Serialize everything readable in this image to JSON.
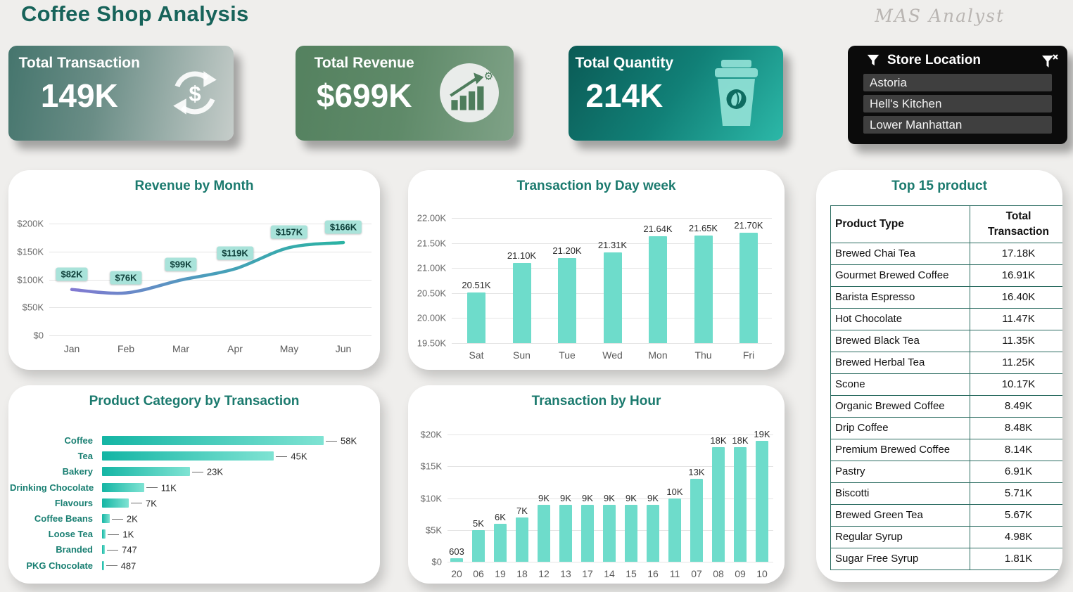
{
  "header": {
    "title": "Coffee Shop Analysis",
    "brand": "MAS Analyst"
  },
  "kpis": [
    {
      "label": "Total Transaction",
      "value": "149K",
      "icon": "transaction-cycle-icon"
    },
    {
      "label": "Total Revenue",
      "value": "$699K",
      "icon": "revenue-growth-icon"
    },
    {
      "label": "Total Quantity",
      "value": "214K",
      "icon": "coffee-cup-icon"
    }
  ],
  "store_filter": {
    "title": "Store Location",
    "icon": "filter-funnel-icon",
    "clear_icon": "clear-filter-icon",
    "options": [
      "Astoria",
      "Hell's Kitchen",
      "Lower Manhattan"
    ]
  },
  "colors": {
    "accent_teal": "#6edccb",
    "title_teal": "#1b7a6e",
    "chip_bg": "#a9e3da",
    "line_gradient": [
      "#8279d2",
      "#4a9dbb",
      "#2bb3a3"
    ],
    "hbar_gradient": [
      "#14b5a4",
      "#7fe3d3"
    ]
  },
  "chart_data": [
    {
      "id": "revenue_by_month",
      "type": "line",
      "title": "Revenue by Month",
      "categories": [
        "Jan",
        "Feb",
        "Mar",
        "Apr",
        "May",
        "Jun"
      ],
      "values": [
        82,
        76,
        99,
        119,
        157,
        166
      ],
      "labels": [
        "$82K",
        "$76K",
        "$99K",
        "$119K",
        "$157K",
        "$166K"
      ],
      "unit": "K USD",
      "ytick_labels": [
        "$0",
        "$50K",
        "$100K",
        "$150K",
        "$200K"
      ],
      "ylim": [
        0,
        200
      ],
      "grid": true,
      "legend": false
    },
    {
      "id": "transaction_by_day_week",
      "type": "bar",
      "title": "Transaction by Day week",
      "categories": [
        "Sat",
        "Sun",
        "Tue",
        "Wed",
        "Mon",
        "Thu",
        "Fri"
      ],
      "values": [
        20.51,
        21.1,
        21.2,
        21.31,
        21.64,
        21.65,
        21.7
      ],
      "labels": [
        "20.51K",
        "21.10K",
        "21.20K",
        "21.31K",
        "21.64K",
        "21.65K",
        "21.70K"
      ],
      "unit": "K transactions",
      "ytick_labels": [
        "19.50K",
        "20.00K",
        "20.50K",
        "21.00K",
        "21.50K",
        "22.00K"
      ],
      "ylim": [
        19.5,
        22.0
      ],
      "grid": true,
      "legend": false
    },
    {
      "id": "product_category_by_transaction",
      "type": "bar-horizontal",
      "title": "Product Category by  Transaction",
      "categories": [
        "Coffee",
        "Tea",
        "Bakery",
        "Drinking Chocolate",
        "Flavours",
        "Coffee Beans",
        "Loose Tea",
        "Branded",
        "PKG Chocolate"
      ],
      "values": [
        58000,
        45000,
        23000,
        11000,
        7000,
        2000,
        1000,
        747,
        487
      ],
      "labels": [
        "58K",
        "45K",
        "23K",
        "11K",
        "7K",
        "2K",
        "1K",
        "747",
        "487"
      ],
      "xlim": [
        0,
        58000
      ],
      "grid": false,
      "legend": false
    },
    {
      "id": "transaction_by_hour",
      "type": "bar",
      "title": "Transaction by Hour",
      "categories": [
        "20",
        "06",
        "19",
        "18",
        "12",
        "13",
        "17",
        "14",
        "15",
        "16",
        "11",
        "07",
        "08",
        "09",
        "10"
      ],
      "values": [
        603,
        5000,
        6000,
        7000,
        9000,
        9000,
        9000,
        9000,
        9000,
        9000,
        10000,
        13000,
        18000,
        18000,
        19000
      ],
      "labels": [
        "603",
        "5K",
        "6K",
        "7K",
        "9K",
        "9K",
        "9K",
        "9K",
        "9K",
        "9K",
        "10K",
        "13K",
        "18K",
        "18K",
        "19K"
      ],
      "ytick_labels": [
        "$0",
        "$5K",
        "$10K",
        "$15K",
        "$20K"
      ],
      "ylim": [
        0,
        20000
      ],
      "grid": true,
      "legend": false
    }
  ],
  "top_products": {
    "title": "Top 15 product",
    "columns": [
      "Product Type",
      "Total Transaction"
    ],
    "rows": [
      [
        "Brewed Chai Tea",
        "17.18K"
      ],
      [
        "Gourmet Brewed Coffee",
        "16.91K"
      ],
      [
        "Barista Espresso",
        "16.40K"
      ],
      [
        "Hot Chocolate",
        "11.47K"
      ],
      [
        "Brewed Black Tea",
        "11.35K"
      ],
      [
        "Brewed Herbal Tea",
        "11.25K"
      ],
      [
        "Scone",
        "10.17K"
      ],
      [
        "Organic Brewed Coffee",
        "8.49K"
      ],
      [
        "Drip Coffee",
        "8.48K"
      ],
      [
        "Premium Brewed Coffee",
        "8.14K"
      ],
      [
        "Pastry",
        "6.91K"
      ],
      [
        "Biscotti",
        "5.71K"
      ],
      [
        "Brewed Green Tea",
        "5.67K"
      ],
      [
        "Regular Syrup",
        "4.98K"
      ],
      [
        "Sugar Free Syrup",
        "1.81K"
      ]
    ]
  }
}
